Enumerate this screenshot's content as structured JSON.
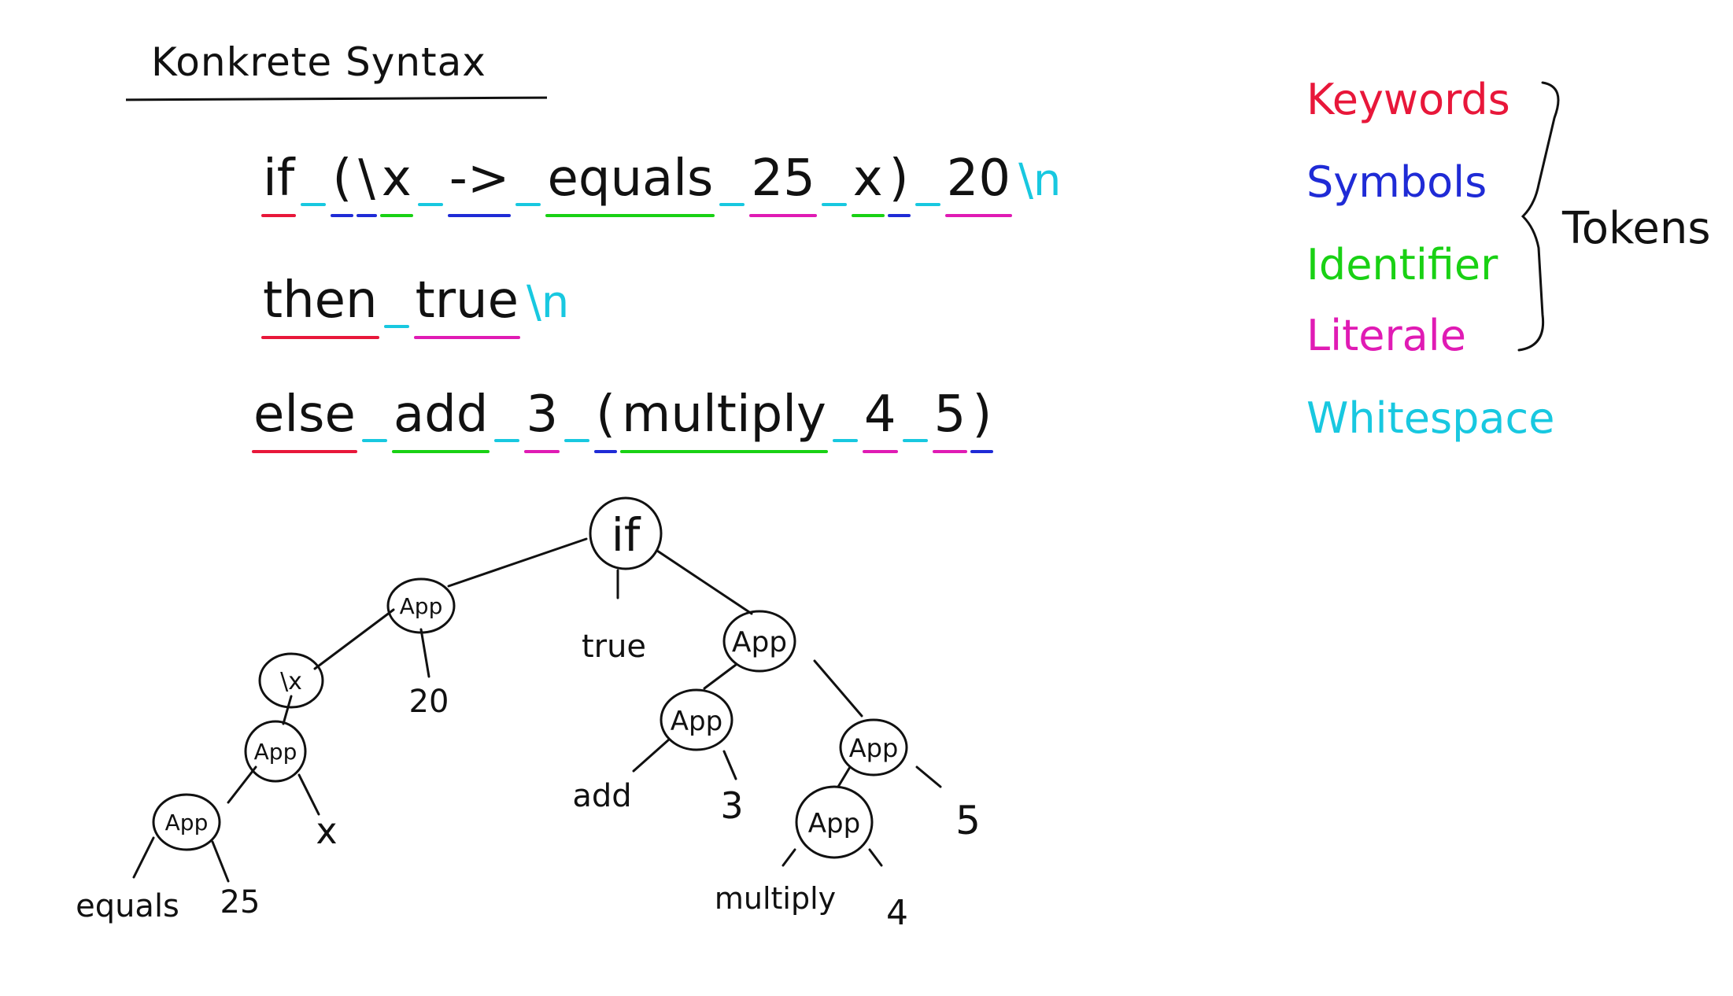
{
  "title": "Konkrete Syntax",
  "colors": {
    "keyword": "#e8173a",
    "symbol": "#1f2bd6",
    "identifier": "#19d114",
    "literal": "#e01bb4",
    "whitespace": "#18c8e0",
    "ink": "#111111"
  },
  "code": {
    "line1": [
      {
        "t": "if",
        "k": "keyword"
      },
      {
        "ws": true
      },
      {
        "t": "(",
        "k": "symbol"
      },
      {
        "t": "\\",
        "k": "symbol"
      },
      {
        "t": "x",
        "k": "identifier"
      },
      {
        "ws": true
      },
      {
        "t": "->",
        "k": "symbol"
      },
      {
        "ws": true
      },
      {
        "t": "equals",
        "k": "identifier"
      },
      {
        "ws": true
      },
      {
        "t": "25",
        "k": "literal"
      },
      {
        "ws": true
      },
      {
        "t": "x",
        "k": "identifier"
      },
      {
        "t": ")",
        "k": "symbol"
      },
      {
        "ws": true
      },
      {
        "t": "20",
        "k": "literal"
      },
      {
        "nl": "\\n"
      }
    ],
    "line2": [
      {
        "t": "then",
        "k": "keyword"
      },
      {
        "ws": true
      },
      {
        "t": "true",
        "k": "literal"
      },
      {
        "nl": "\\n"
      }
    ],
    "line3": [
      {
        "t": "else",
        "k": "keyword"
      },
      {
        "ws": true
      },
      {
        "t": "add",
        "k": "identifier"
      },
      {
        "ws": true
      },
      {
        "t": "3",
        "k": "literal"
      },
      {
        "ws": true
      },
      {
        "t": "(",
        "k": "symbol"
      },
      {
        "t": "multiply",
        "k": "identifier"
      },
      {
        "ws": true
      },
      {
        "t": "4",
        "k": "literal"
      },
      {
        "ws": true
      },
      {
        "t": "5",
        "k": "literal"
      },
      {
        "t": ")",
        "k": "symbol"
      }
    ]
  },
  "legend": {
    "keywords": "Keywords",
    "symbols": "Symbols",
    "identifier": "Identifier",
    "literale": "Literale",
    "whitespace": "Whitespace",
    "tokens": "Tokens"
  },
  "tree": {
    "if": "if",
    "app": "App",
    "lambda": "\\x",
    "equals": "equals",
    "n25": "25",
    "x": "x",
    "n20": "20",
    "true": "true",
    "add": "add",
    "n3": "3",
    "multiply": "multiply",
    "n4": "4",
    "n5": "5"
  }
}
